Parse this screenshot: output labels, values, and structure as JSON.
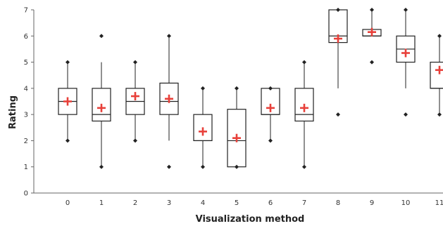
{
  "chart_data": {
    "type": "box",
    "xlabel": "Visualization method",
    "ylabel": "Rating",
    "ylim": [
      0,
      7
    ],
    "yticks": [
      0,
      1,
      2,
      3,
      4,
      5,
      6,
      7
    ],
    "categories": [
      "0",
      "1",
      "2",
      "3",
      "4",
      "5",
      "6",
      "7",
      "8",
      "9",
      "10",
      "11"
    ],
    "boxes": [
      {
        "category": "0",
        "whisker_low": 2,
        "q1": 3,
        "median": 3.5,
        "q3": 4,
        "whisker_high": 5,
        "mean": 3.5,
        "outliers": [
          2,
          5
        ]
      },
      {
        "category": "1",
        "whisker_low": 1,
        "q1": 2.75,
        "median": 3,
        "q3": 4,
        "whisker_high": 5,
        "mean": 3.25,
        "outliers": [
          1,
          6
        ]
      },
      {
        "category": "2",
        "whisker_low": 2,
        "q1": 3,
        "median": 3.5,
        "q3": 4,
        "whisker_high": 5,
        "mean": 3.7,
        "outliers": [
          2,
          5
        ]
      },
      {
        "category": "3",
        "whisker_low": 2,
        "q1": 3,
        "median": 3.5,
        "q3": 4.2,
        "whisker_high": 6,
        "mean": 3.6,
        "outliers": [
          1,
          6
        ]
      },
      {
        "category": "4",
        "whisker_low": 1,
        "q1": 2,
        "median": 2,
        "q3": 3,
        "whisker_high": 4,
        "mean": 2.35,
        "outliers": [
          1,
          4
        ]
      },
      {
        "category": "5",
        "whisker_low": 1,
        "q1": 1,
        "median": 2,
        "q3": 3.2,
        "whisker_high": 4,
        "mean": 2.1,
        "outliers": [
          1,
          4
        ]
      },
      {
        "category": "6",
        "whisker_low": 2,
        "q1": 3,
        "median": 3,
        "q3": 4,
        "whisker_high": 4,
        "mean": 3.25,
        "outliers": [
          2,
          4
        ]
      },
      {
        "category": "7",
        "whisker_low": 1,
        "q1": 2.75,
        "median": 3,
        "q3": 4,
        "whisker_high": 5,
        "mean": 3.25,
        "outliers": [
          1,
          5
        ]
      },
      {
        "category": "8",
        "whisker_low": 4,
        "q1": 5.75,
        "median": 6,
        "q3": 7,
        "whisker_high": 7,
        "mean": 5.9,
        "outliers": [
          3,
          7
        ]
      },
      {
        "category": "9",
        "whisker_low": 6,
        "q1": 6,
        "median": 6,
        "q3": 6.25,
        "whisker_high": 7,
        "mean": 6.15,
        "outliers": [
          5,
          7
        ]
      },
      {
        "category": "10",
        "whisker_low": 4,
        "q1": 5,
        "median": 5.5,
        "q3": 6,
        "whisker_high": 7,
        "mean": 5.35,
        "outliers": [
          3,
          7
        ]
      },
      {
        "category": "11",
        "whisker_low": 3,
        "q1": 4,
        "median": 4,
        "q3": 5,
        "whisker_high": 6,
        "mean": 4.7,
        "outliers": [
          3,
          6
        ]
      }
    ],
    "colors": {
      "box_stroke": "#222222",
      "mean_marker": "#e8403a",
      "outlier": "#222222",
      "axis": "#666666"
    },
    "grid": false,
    "legend": "none"
  }
}
